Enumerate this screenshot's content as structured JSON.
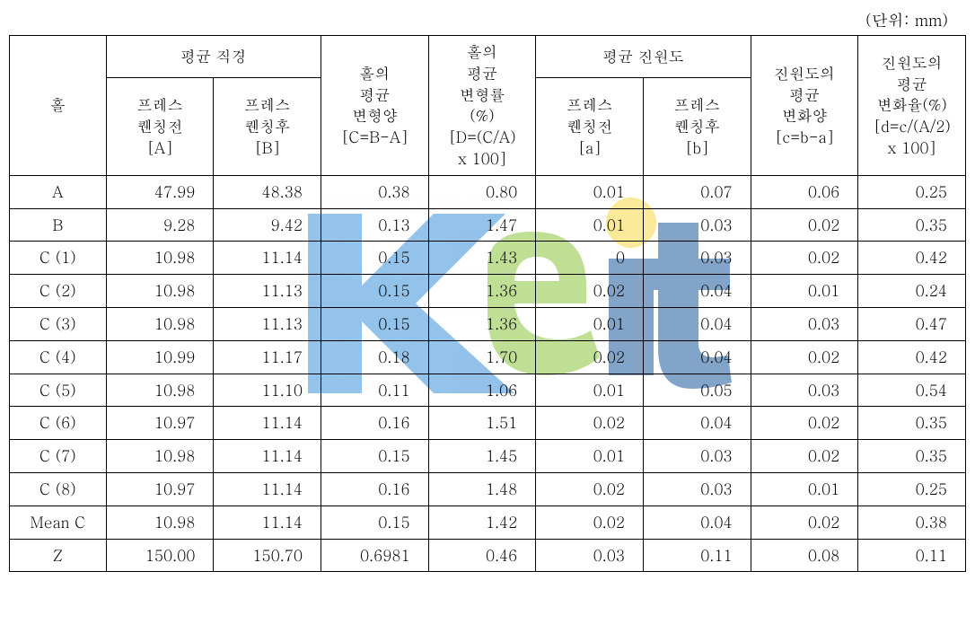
{
  "unit_label": "(단위: mm)",
  "headers": {
    "hole": "홀",
    "avg_diameter": "평균 직경",
    "before_press_A": "프레스\n퀜칭전\n[A]",
    "after_press_B": "프레스\n퀜칭후\n[B]",
    "hole_avg_deform": "홀의\n평균\n변형양\n[C=B-A]",
    "hole_avg_deform_rate": "홀의\n평균\n변형률\n(%)\n[D=(C/A)\nx 100]",
    "avg_roundness": "평균 진원도",
    "before_press_a": "프레스\n퀜칭전\n[a]",
    "after_press_b": "프레스\n퀜칭후\n[b]",
    "roundness_avg_change": "진원도의\n평균\n변화양\n[c=b-a]",
    "roundness_avg_change_rate": "진원도의\n평균\n변화율(%)\n[d=c/(A/2)\nx 100]"
  },
  "rows": [
    {
      "label": "A",
      "values": [
        "47.99",
        "48.38",
        "0.38",
        "0.80",
        "0.01",
        "0.07",
        "0.06",
        "0.25"
      ]
    },
    {
      "label": "B",
      "values": [
        "9.28",
        "9.42",
        "0.13",
        "1.47",
        "0.01",
        "0.03",
        "0.02",
        "0.35"
      ]
    },
    {
      "label": "C (1)",
      "values": [
        "10.98",
        "11.14",
        "0.15",
        "1.43",
        "0",
        "0.03",
        "0.02",
        "0.42"
      ]
    },
    {
      "label": "C (2)",
      "values": [
        "10.98",
        "11.13",
        "0.15",
        "1.36",
        "0.02",
        "0.04",
        "0.01",
        "0.24"
      ]
    },
    {
      "label": "C (3)",
      "values": [
        "10.98",
        "11.13",
        "0.15",
        "1.36",
        "0.01",
        "0.04",
        "0.03",
        "0.47"
      ]
    },
    {
      "label": "C (4)",
      "values": [
        "10.99",
        "11.17",
        "0.18",
        "1.70",
        "0.02",
        "0.04",
        "0.02",
        "0.42"
      ]
    },
    {
      "label": "C (5)",
      "values": [
        "10.98",
        "11.10",
        "0.11",
        "1.06",
        "0.01",
        "0.05",
        "0.03",
        "0.54"
      ]
    },
    {
      "label": "C (6)",
      "values": [
        "10.97",
        "11.14",
        "0.16",
        "1.51",
        "0.02",
        "0.04",
        "0.02",
        "0.35"
      ]
    },
    {
      "label": "C (7)",
      "values": [
        "10.98",
        "11.14",
        "0.15",
        "1.45",
        "0.01",
        "0.03",
        "0.02",
        "0.35"
      ]
    },
    {
      "label": "C (8)",
      "values": [
        "10.97",
        "11.14",
        "0.16",
        "1.48",
        "0.02",
        "0.03",
        "0.01",
        "0.25"
      ]
    },
    {
      "label": "Mean C",
      "values": [
        "10.98",
        "11.14",
        "0.15",
        "1.42",
        "0.02",
        "0.04",
        "0.02",
        "0.38"
      ]
    },
    {
      "label": "Z",
      "values": [
        "150.00",
        "150.70",
        "0.6981",
        "0.46",
        "0.03",
        "0.11",
        "0.08",
        "0.11"
      ]
    }
  ],
  "watermark": {
    "logo_text": "Keit",
    "small_text": "KEIT",
    "colors": {
      "blue": "#3b8fd8",
      "green": "#8bc53f",
      "yellow": "#f9d848",
      "dark_blue": "#1f5a9e"
    }
  },
  "style": {
    "font_size_body": 17,
    "font_size_unit": 18,
    "border_color": "#000000",
    "background_color": "#ffffff"
  }
}
